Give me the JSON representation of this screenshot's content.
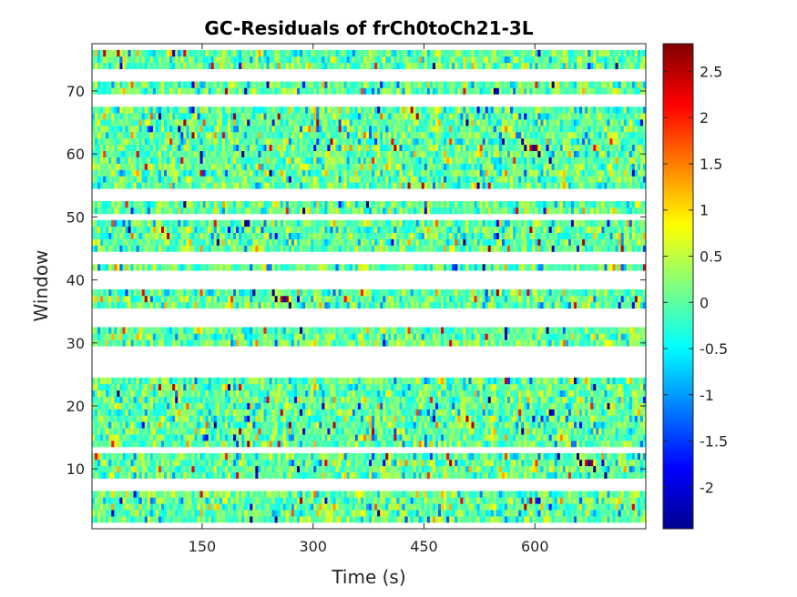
{
  "chart_data": {
    "type": "heatmap",
    "title": "GC-Residuals of frCh0toCh21-3L",
    "xlabel": "Time (s)",
    "ylabel": "Window",
    "xlim": [
      1,
      750
    ],
    "ylim": [
      0.5,
      77.5
    ],
    "x_ticks": [
      150,
      300,
      450,
      600
    ],
    "y_ticks": [
      10,
      20,
      30,
      40,
      50,
      60,
      70
    ],
    "colorbar": {
      "colormap": "jet",
      "clim": [
        -2.45,
        2.8
      ],
      "ticks": [
        -2,
        -1.5,
        -1,
        -0.5,
        0,
        0.5,
        1,
        1.5,
        2,
        2.5
      ]
    },
    "missing_windows": [
      1,
      7,
      8,
      13,
      25,
      26,
      27,
      28,
      29,
      33,
      34,
      35,
      39,
      40,
      41,
      43,
      44,
      50,
      53,
      54,
      68,
      69,
      72,
      73,
      77
    ],
    "value_distribution": "residual values per window x time; mostly within -0.6 to 0.6 with sparse extremes near colour limits"
  }
}
